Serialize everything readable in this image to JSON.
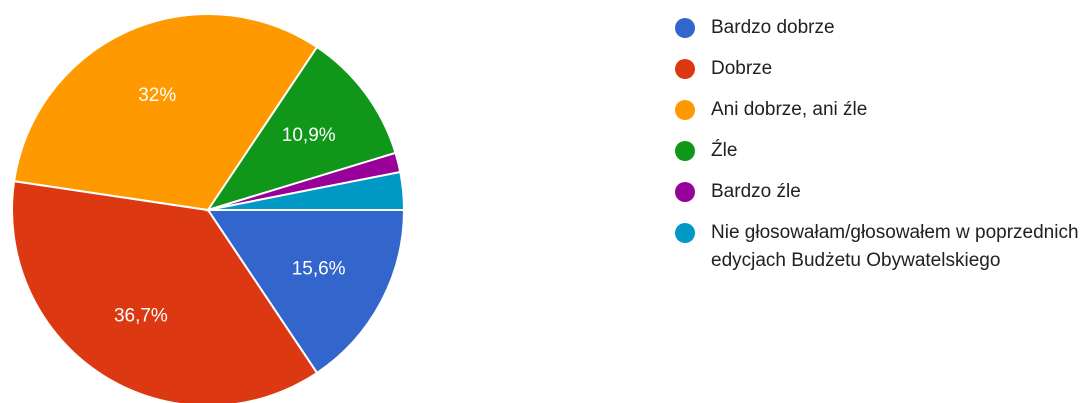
{
  "chart_data": {
    "type": "pie",
    "categories": [
      "Bardzo dobrze",
      "Dobrze",
      "Ani dobrze, ani źle",
      "Źle",
      "Bardzo źle",
      "Nie głosowałam/głosowałem w poprzednich edycjach Budżetu Obywatelskiego"
    ],
    "values": [
      15.6,
      36.7,
      32,
      10.9,
      1.6,
      3.1
    ],
    "data_labels": [
      "15,6%",
      "36,7%",
      "32%",
      "10,9%",
      "",
      ""
    ],
    "colors": [
      "#3366cc",
      "#dc3912",
      "#ff9900",
      "#109618",
      "#990099",
      "#0099c6"
    ],
    "legend_position": "right",
    "start_angle": "3 o'clock",
    "direction": "clockwise",
    "title": ""
  }
}
